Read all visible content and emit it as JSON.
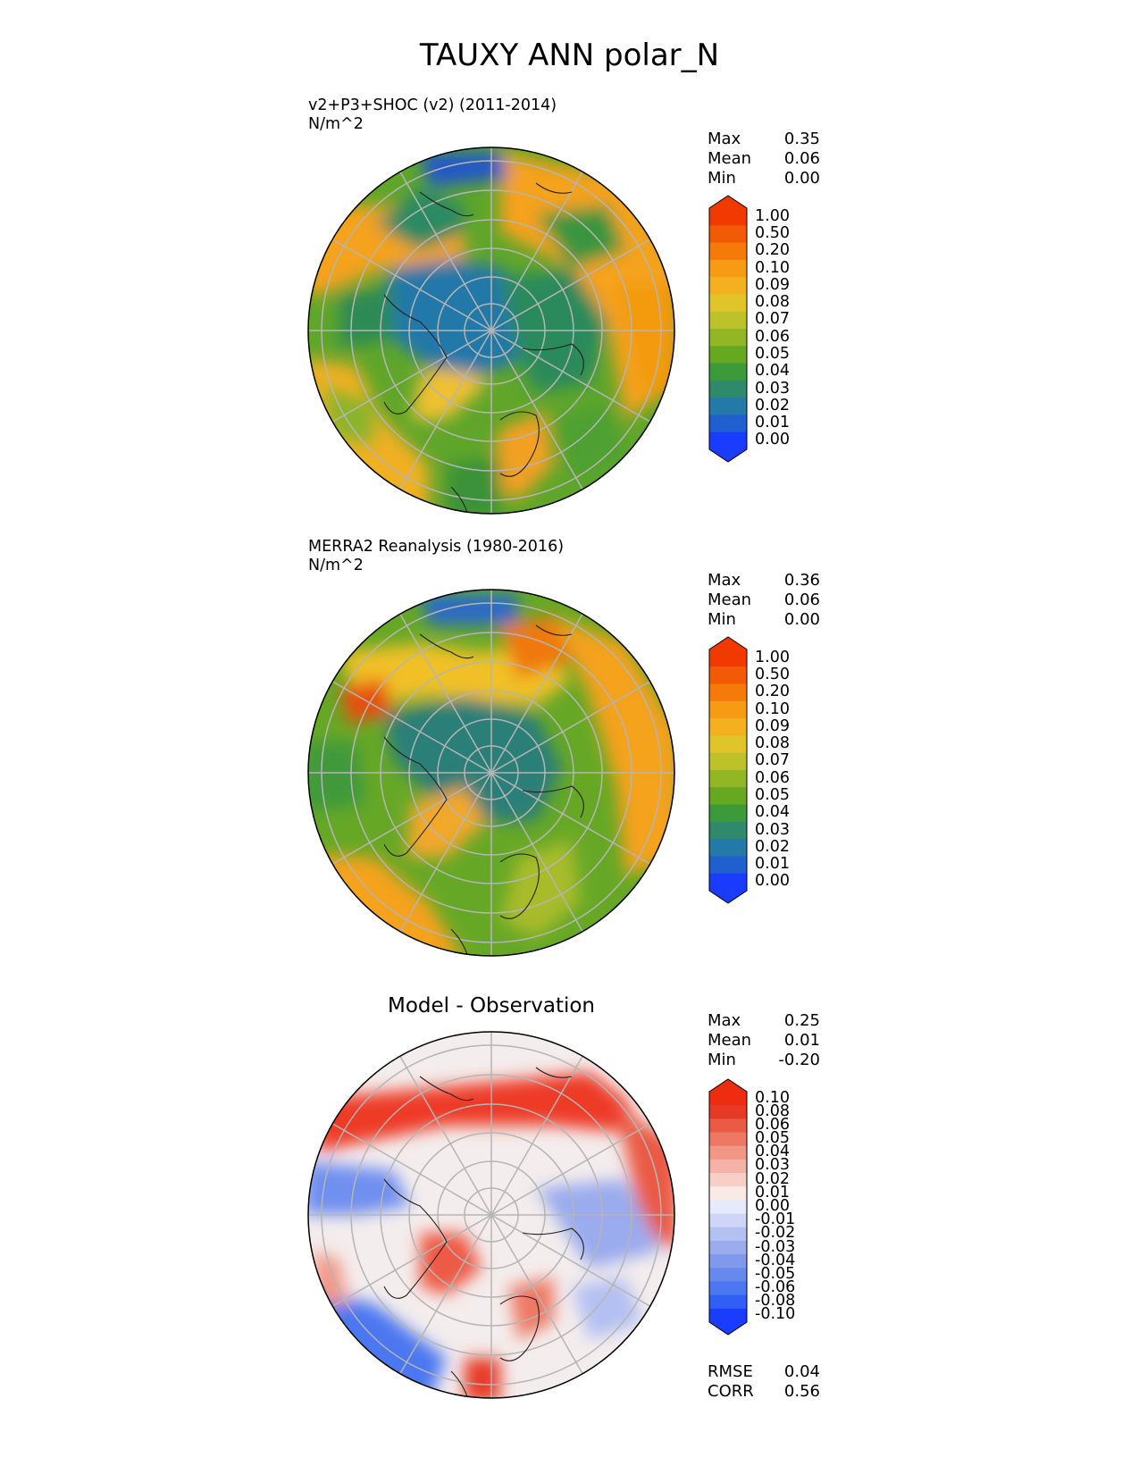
{
  "figure": {
    "title": "TAUXY ANN polar_N"
  },
  "panels": [
    {
      "id": "model",
      "subtitle_line1": "v2+P3+SHOC (v2) (2011-2014)",
      "subtitle_line2": "N/m^2",
      "stats": {
        "max_label": "Max",
        "max": "0.35",
        "mean_label": "Mean",
        "mean": "0.06",
        "min_label": "Min",
        "min": "0.00"
      },
      "colorbar_ticks": [
        "1.00",
        "0.50",
        "0.20",
        "0.10",
        "0.09",
        "0.08",
        "0.07",
        "0.06",
        "0.05",
        "0.04",
        "0.03",
        "0.02",
        "0.01",
        "0.00"
      ]
    },
    {
      "id": "reference",
      "subtitle_line1": "MERRA2 Reanalysis (1980-2016)",
      "subtitle_line2": "N/m^2",
      "stats": {
        "max_label": "Max",
        "max": "0.36",
        "mean_label": "Mean",
        "mean": "0.06",
        "min_label": "Min",
        "min": "0.00"
      },
      "colorbar_ticks": [
        "1.00",
        "0.50",
        "0.20",
        "0.10",
        "0.09",
        "0.08",
        "0.07",
        "0.06",
        "0.05",
        "0.04",
        "0.03",
        "0.02",
        "0.01",
        "0.00"
      ]
    },
    {
      "id": "difference",
      "title": "Model - Observation",
      "stats": {
        "max_label": "Max",
        "max": "0.25",
        "mean_label": "Mean",
        "mean": "0.01",
        "min_label": "Min",
        "min": "-0.20"
      },
      "colorbar_ticks": [
        "0.10",
        "0.08",
        "0.06",
        "0.05",
        "0.04",
        "0.03",
        "0.02",
        "0.01",
        "0.00",
        "-0.01",
        "-0.02",
        "-0.03",
        "-0.04",
        "-0.05",
        "-0.06",
        "-0.08",
        "-0.10"
      ],
      "metrics": {
        "rmse_label": "RMSE",
        "rmse": "0.04",
        "corr_label": "CORR",
        "corr": "0.56"
      }
    }
  ],
  "colors": {
    "sequential": [
      "#1a3cff",
      "#1f5fd0",
      "#2379a8",
      "#2e8a6a",
      "#3d9a3a",
      "#66a81f",
      "#93b625",
      "#bdc12a",
      "#e0c42a",
      "#f5b01f",
      "#f79a14",
      "#f57a0a",
      "#f25a05",
      "#f03a00"
    ],
    "diverging": [
      "#1a3cff",
      "#2f5ff5",
      "#4b77f0",
      "#6689ee",
      "#8099ec",
      "#9aabee",
      "#b3c0f2",
      "#cdd6f6",
      "#e6ebfb",
      "#fbe9e6",
      "#f8cfc7",
      "#f5b3a8",
      "#f29686",
      "#ee7864",
      "#ea5a44",
      "#e63a26",
      "#ee2c10"
    ]
  }
}
